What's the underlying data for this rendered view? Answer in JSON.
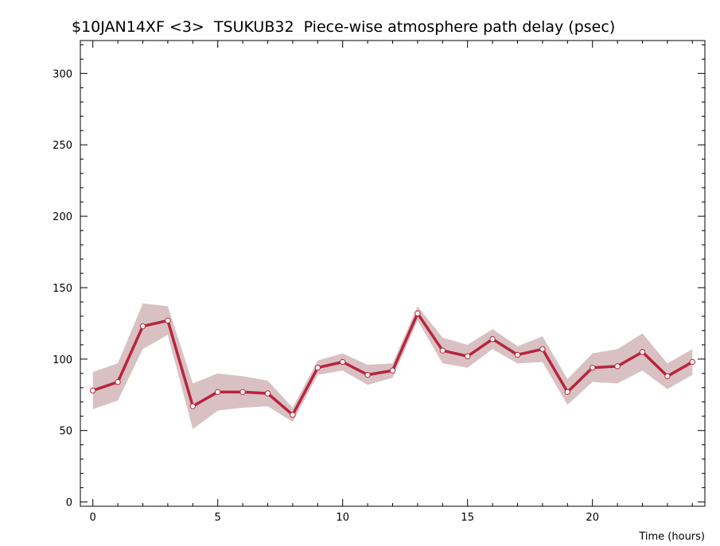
{
  "chart_data": {
    "type": "line",
    "title": "$10JAN14XF <3>  TSUKUB32  Piece-wise atmosphere path delay (psec)",
    "xlabel": "Time (hours)",
    "ylabel": "",
    "xlim": [
      -0.5,
      24.5
    ],
    "ylim": [
      -3,
      323
    ],
    "x_ticks": [
      0,
      5,
      10,
      15,
      20
    ],
    "y_ticks": [
      0,
      50,
      100,
      150,
      200,
      250,
      300
    ],
    "x_minor_step": 1,
    "y_minor_step": 10,
    "grid": false,
    "colors": {
      "line": "#b8243c",
      "band": "#d9c1c3",
      "marker_fill": "#ffffff"
    },
    "series": [
      {
        "x": [
          0,
          1,
          2,
          3,
          4,
          5,
          6,
          7,
          8,
          9,
          10,
          11,
          12,
          13,
          14,
          15,
          16,
          17,
          18,
          19,
          20,
          21,
          22,
          23,
          24
        ],
        "values": [
          78,
          84,
          123,
          127,
          67,
          77,
          77,
          76,
          61,
          94,
          98,
          89,
          92,
          132,
          106,
          102,
          114,
          103,
          107,
          77,
          94,
          95,
          105,
          88,
          98
        ],
        "upper": [
          91,
          97,
          139,
          137,
          83,
          90,
          88,
          85,
          66,
          99,
          104,
          96,
          97,
          137,
          115,
          110,
          121,
          109,
          116,
          86,
          104,
          107,
          118,
          97,
          107
        ],
        "lower": [
          65,
          71,
          107,
          117,
          51,
          64,
          66,
          67,
          56,
          89,
          92,
          82,
          87,
          127,
          97,
          94,
          107,
          97,
          98,
          68,
          84,
          83,
          92,
          79,
          89
        ]
      }
    ]
  }
}
